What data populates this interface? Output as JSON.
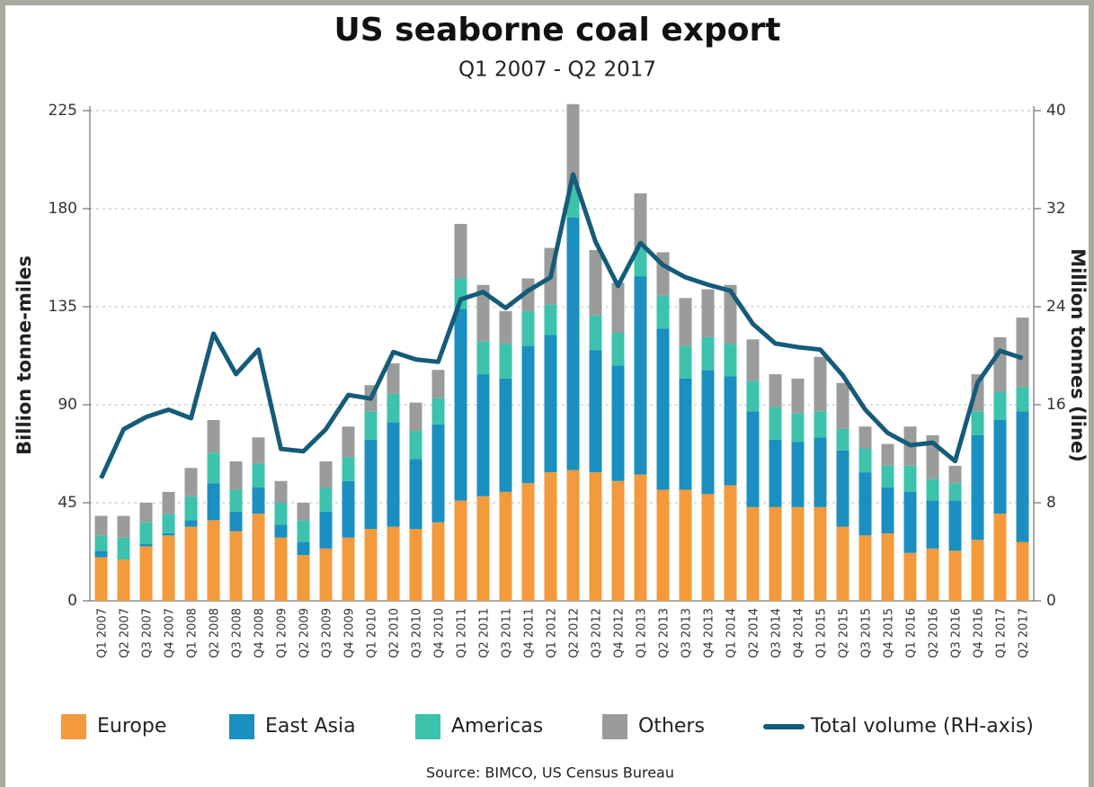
{
  "chart_data": {
    "type": "bar",
    "stacked": true,
    "title": "US seaborne coal export",
    "subtitle": "Q1 2007 - Q2 2017",
    "y_label": "Billion tonne-miles",
    "y2_label": "Million tonnes (line)",
    "source": "Source: BIMCO, US Census Bureau",
    "categories": [
      "Q1 2007",
      "Q2 2007",
      "Q3 2007",
      "Q4 2007",
      "Q1 2008",
      "Q2 2008",
      "Q3 2008",
      "Q4 2008",
      "Q1 2009",
      "Q2 2009",
      "Q3 2009",
      "Q4 2009",
      "Q1 2010",
      "Q2 2010",
      "Q3 2010",
      "Q4 2010",
      "Q1 2011",
      "Q2 2011",
      "Q3 2011",
      "Q4 2011",
      "Q1 2012",
      "Q2 2012",
      "Q3 2012",
      "Q4 2012",
      "Q1 2013",
      "Q2 2013",
      "Q3 2013",
      "Q4 2013",
      "Q1 2014",
      "Q2 2014",
      "Q3 2014",
      "Q4 2014",
      "Q1 2015",
      "Q2 2015",
      "Q3 2015",
      "Q4 2015",
      "Q1 2016",
      "Q2 2016",
      "Q3 2016",
      "Q4 2016",
      "Q1 2017",
      "Q2 2017"
    ],
    "series": [
      {
        "name": "Europe",
        "color": "#f39a3c",
        "values": [
          20,
          19,
          25,
          30,
          34,
          37,
          32,
          40,
          29,
          21,
          24,
          29,
          33,
          34,
          33,
          36,
          46,
          48,
          50,
          54,
          59,
          60,
          59,
          55,
          58,
          51,
          51,
          49,
          53,
          43,
          43,
          43,
          43,
          34,
          30,
          31,
          22,
          24,
          23,
          28,
          40,
          27
        ]
      },
      {
        "name": "East Asia",
        "color": "#1a8fc0",
        "values": [
          3,
          0,
          1,
          1,
          3,
          17,
          9,
          12,
          6,
          6,
          17,
          26,
          41,
          48,
          32,
          45,
          88,
          56,
          52,
          63,
          63,
          116,
          56,
          53,
          91,
          74,
          51,
          57,
          50,
          44,
          31,
          30,
          32,
          35,
          29,
          21,
          28,
          22,
          23,
          48,
          43,
          60
        ]
      },
      {
        "name": "Americas",
        "color": "#3dc2ac",
        "values": [
          7,
          10,
          10,
          9,
          11,
          14,
          10,
          11,
          10,
          10,
          11,
          11,
          13,
          13,
          13,
          12,
          14,
          15,
          16,
          16,
          14,
          14,
          16,
          15,
          13,
          15,
          15,
          15,
          15,
          14,
          15,
          13,
          12,
          10,
          11,
          10,
          12,
          10,
          8,
          11,
          13,
          11
        ]
      },
      {
        "name": "Others",
        "color": "#9a9c9c",
        "values": [
          9,
          10,
          9,
          10,
          13,
          15,
          13,
          12,
          10,
          8,
          12,
          14,
          12,
          14,
          13,
          13,
          25,
          26,
          15,
          15,
          26,
          38,
          30,
          23,
          25,
          20,
          22,
          22,
          27,
          19,
          15,
          16,
          25,
          21,
          10,
          10,
          18,
          20,
          8,
          17,
          25,
          32
        ]
      },
      {
        "name": "Total volume (RH-axis)",
        "type": "line",
        "axis": "y2",
        "color": "#155b7a",
        "values": [
          10,
          14,
          15,
          15.6,
          14.9,
          21.8,
          18.5,
          20.5,
          12.4,
          12.2,
          14,
          16.8,
          16.5,
          20.3,
          19.7,
          19.5,
          24.6,
          25.2,
          23.9,
          25.3,
          26.4,
          34.8,
          29.3,
          25.7,
          29.2,
          27.4,
          26.4,
          25.8,
          25.3,
          22.6,
          21,
          20.7,
          20.5,
          18.4,
          15.6,
          13.7,
          12.7,
          12.9,
          11.4,
          17.8,
          20.4,
          19.8
        ]
      }
    ],
    "ylim": [
      0,
      225
    ],
    "yticks": [
      0,
      45,
      90,
      135,
      180,
      225
    ],
    "y2lim": [
      0,
      40
    ],
    "y2ticks": [
      0,
      8,
      16,
      24,
      32,
      40
    ],
    "grid": true
  }
}
